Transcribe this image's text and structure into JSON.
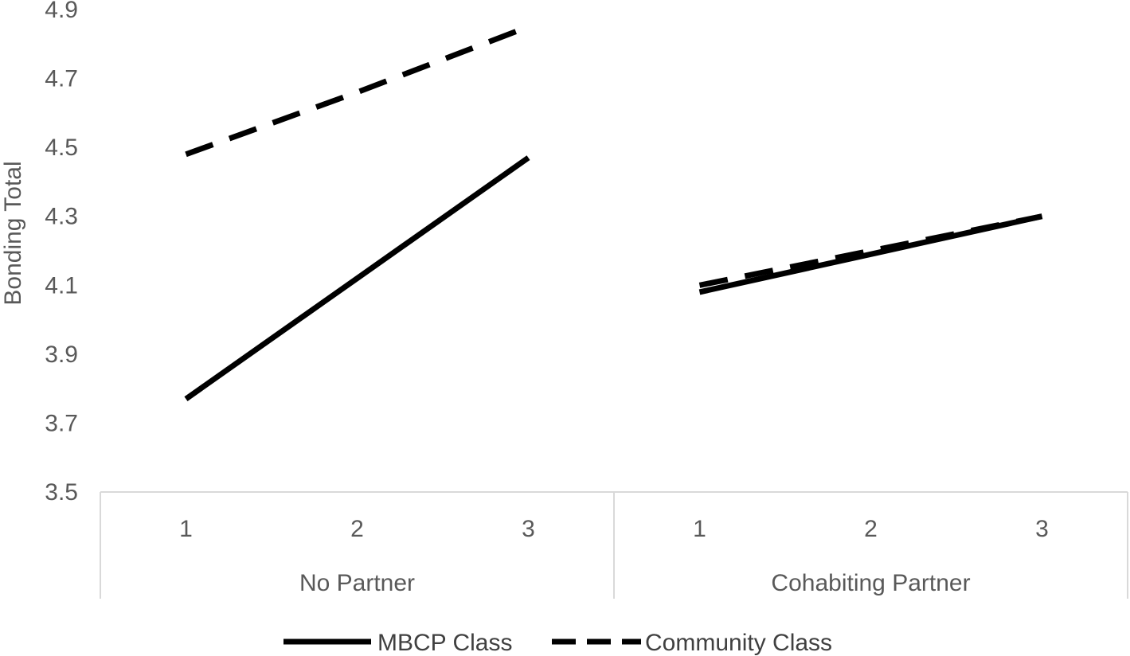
{
  "chart_data": {
    "type": "line",
    "title": "",
    "ylabel": "Bonding Total",
    "xlabel": "",
    "ylim": [
      3.5,
      4.9
    ],
    "yticks": [
      "3.5",
      "3.7",
      "3.9",
      "4.1",
      "4.3",
      "4.5",
      "4.7",
      "4.9"
    ],
    "grid": false,
    "legend_position": "bottom",
    "groups": [
      {
        "label": "No Partner",
        "categories": [
          "1",
          "2",
          "3"
        ]
      },
      {
        "label": "Cohabiting Partner",
        "categories": [
          "1",
          "2",
          "3"
        ]
      }
    ],
    "series": [
      {
        "name": "MBCP Class",
        "style": "solid",
        "color": "#000000",
        "values": [
          [
            3.77,
            4.12,
            4.47
          ],
          [
            4.08,
            4.19,
            4.3
          ]
        ]
      },
      {
        "name": "Community Class",
        "style": "dashed",
        "color": "#000000",
        "values": [
          [
            4.48,
            4.66,
            4.85
          ],
          [
            4.1,
            4.2,
            4.3
          ]
        ]
      }
    ]
  }
}
